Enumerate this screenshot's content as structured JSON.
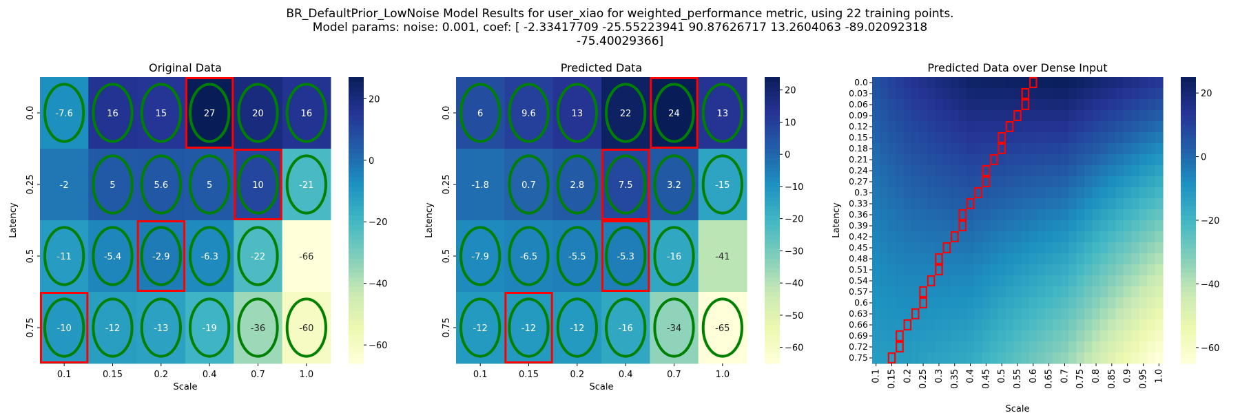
{
  "figure": {
    "suptitle_lines": [
      "BR_DefaultPrior_LowNoise Model Results for user_xiao for weighted_performance metric, using 22 training points.",
      "Model params: noise: 0.001, coef: [ -2.33417709 -25.55223941  90.87626717  13.2604063  -89.02092318",
      "-75.40029366]"
    ]
  },
  "colormap": {
    "name": "YlGnBu",
    "stops": [
      "#ffffd9",
      "#edf8b1",
      "#c7e9b4",
      "#7fcdbb",
      "#41b6c4",
      "#1d91c0",
      "#225ea8",
      "#253494",
      "#081d58"
    ],
    "circle_color": "#008000",
    "rect_color": "#ff0000"
  },
  "chart_data": [
    {
      "type": "heatmap",
      "title": "Original Data",
      "xlabel": "Scale",
      "ylabel": "Latency",
      "x_ticks": [
        "0.1",
        "0.15",
        "0.2",
        "0.4",
        "0.7",
        "1.0"
      ],
      "y_ticks": [
        "0.0",
        "0.25",
        "0.5",
        "0.75"
      ],
      "values": [
        [
          -7.6,
          16,
          15,
          27,
          20,
          16
        ],
        [
          -2,
          5,
          5.6,
          5,
          10,
          -21
        ],
        [
          -11,
          -5.4,
          -2.9,
          -6.3,
          -22,
          -66
        ],
        [
          -10,
          -12,
          -13,
          -19,
          -36,
          -60
        ]
      ],
      "labels": [
        [
          "-7.6",
          "16",
          "15",
          "27",
          "20",
          "16"
        ],
        [
          "-2",
          "5",
          "5.6",
          "5",
          "10",
          "-21"
        ],
        [
          "-11",
          "-5.4",
          "-2.9",
          "-6.3",
          "-22",
          "-66"
        ],
        [
          "-10",
          "-12",
          "-13",
          "-19",
          "-36",
          "-60"
        ]
      ],
      "circled": [
        [
          0,
          0
        ],
        [
          0,
          1
        ],
        [
          0,
          2
        ],
        [
          0,
          3
        ],
        [
          0,
          4
        ],
        [
          0,
          5
        ],
        [
          1,
          1
        ],
        [
          1,
          2
        ],
        [
          1,
          3
        ],
        [
          1,
          4
        ],
        [
          1,
          5
        ],
        [
          2,
          0
        ],
        [
          2,
          1
        ],
        [
          2,
          2
        ],
        [
          2,
          3
        ],
        [
          2,
          4
        ],
        [
          3,
          0
        ],
        [
          3,
          1
        ],
        [
          3,
          2
        ],
        [
          3,
          3
        ],
        [
          3,
          4
        ],
        [
          3,
          5
        ]
      ],
      "boxed": [
        [
          0,
          3
        ],
        [
          1,
          4
        ],
        [
          2,
          2
        ],
        [
          3,
          0
        ]
      ],
      "vmin": -66,
      "vmax": 27,
      "colorbar_ticks": [
        20,
        0,
        -20,
        -40,
        -60
      ]
    },
    {
      "type": "heatmap",
      "title": "Predicted Data",
      "xlabel": "Scale",
      "ylabel": "Latency",
      "x_ticks": [
        "0.1",
        "0.15",
        "0.2",
        "0.4",
        "0.7",
        "1.0"
      ],
      "y_ticks": [
        "0.0",
        "0.25",
        "0.5",
        "0.75"
      ],
      "values": [
        [
          6,
          9.6,
          13,
          22,
          24,
          13
        ],
        [
          -1.8,
          0.7,
          2.8,
          7.5,
          3.2,
          -15
        ],
        [
          -7.9,
          -6.5,
          -5.5,
          -5.3,
          -16,
          -41
        ],
        [
          -12,
          -12,
          -12,
          -16,
          -34,
          -65
        ]
      ],
      "labels": [
        [
          "6",
          "9.6",
          "13",
          "22",
          "24",
          "13"
        ],
        [
          "-1.8",
          "0.7",
          "2.8",
          "7.5",
          "3.2",
          "-15"
        ],
        [
          "-7.9",
          "-6.5",
          "-5.5",
          "-5.3",
          "-16",
          "-41"
        ],
        [
          "-12",
          "-12",
          "-12",
          "-16",
          "-34",
          "-65"
        ]
      ],
      "circled": [
        [
          0,
          0
        ],
        [
          0,
          1
        ],
        [
          0,
          2
        ],
        [
          0,
          3
        ],
        [
          0,
          4
        ],
        [
          0,
          5
        ],
        [
          1,
          1
        ],
        [
          1,
          2
        ],
        [
          1,
          3
        ],
        [
          1,
          4
        ],
        [
          1,
          5
        ],
        [
          2,
          0
        ],
        [
          2,
          1
        ],
        [
          2,
          2
        ],
        [
          2,
          3
        ],
        [
          2,
          4
        ],
        [
          3,
          0
        ],
        [
          3,
          1
        ],
        [
          3,
          2
        ],
        [
          3,
          3
        ],
        [
          3,
          4
        ],
        [
          3,
          5
        ]
      ],
      "boxed": [
        [
          0,
          4
        ],
        [
          1,
          3
        ],
        [
          2,
          3
        ],
        [
          3,
          1
        ]
      ],
      "vmin": -65,
      "vmax": 24,
      "colorbar_ticks": [
        20,
        10,
        0,
        -10,
        -20,
        -30,
        -40,
        -50,
        -60
      ]
    },
    {
      "type": "heatmap",
      "title": "Predicted Data over Dense Input",
      "xlabel": "Scale",
      "ylabel": "Latency",
      "x_ticks": [
        "0.1",
        "0.15",
        "0.2",
        "0.25",
        "0.3",
        "0.35",
        "0.4",
        "0.45",
        "0.5",
        "0.55",
        "0.6",
        "0.65",
        "0.7",
        "0.75",
        "0.8",
        "0.85",
        "0.9",
        "0.95",
        "1.0"
      ],
      "y_ticks": [
        "0.0",
        "0.03",
        "0.06",
        "0.09",
        "0.12",
        "0.15",
        "0.18",
        "0.21",
        "0.24",
        "0.27",
        "0.3",
        "0.33",
        "0.36",
        "0.39",
        "0.42",
        "0.45",
        "0.48",
        "0.51",
        "0.54",
        "0.57",
        "0.6",
        "0.63",
        "0.66",
        "0.69",
        "0.72",
        "0.75"
      ],
      "x_range": [
        0.1,
        1.0
      ],
      "y_range": [
        0.0,
        0.75
      ],
      "model": "surface interpolated from the predicted data grid",
      "anchor_x": [
        0.1,
        0.15,
        0.2,
        0.4,
        0.7,
        1.0
      ],
      "anchor_y": [
        0.0,
        0.25,
        0.5,
        0.75
      ],
      "anchor_values": [
        [
          6,
          9.6,
          13,
          22,
          24,
          13
        ],
        [
          -1.8,
          0.7,
          2.8,
          7.5,
          3.2,
          -15
        ],
        [
          -7.9,
          -6.5,
          -5.5,
          -5.3,
          -16,
          -41
        ],
        [
          -12,
          -12,
          -12,
          -16,
          -34,
          -65
        ]
      ],
      "argmax_path_scale_at_latency": [
        {
          "latency": 0.0,
          "scale": 0.6
        },
        {
          "latency": 0.75,
          "scale": 0.15
        }
      ],
      "vmin": -65,
      "vmax": 25,
      "colorbar_ticks": [
        20,
        0,
        -20,
        -40,
        -60
      ]
    }
  ]
}
